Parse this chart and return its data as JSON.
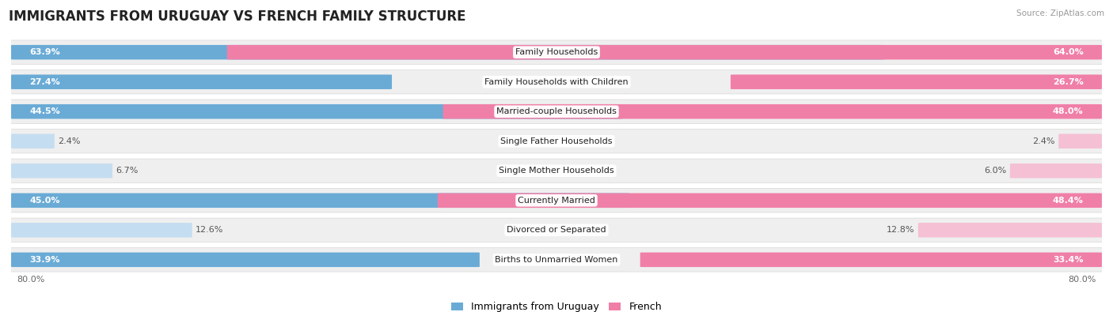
{
  "title": "IMMIGRANTS FROM URUGUAY VS FRENCH FAMILY STRUCTURE",
  "source": "Source: ZipAtlas.com",
  "categories": [
    "Family Households",
    "Family Households with Children",
    "Married-couple Households",
    "Single Father Households",
    "Single Mother Households",
    "Currently Married",
    "Divorced or Separated",
    "Births to Unmarried Women"
  ],
  "uruguay_values": [
    63.9,
    27.4,
    44.5,
    2.4,
    6.7,
    45.0,
    12.6,
    33.9
  ],
  "french_values": [
    64.0,
    26.7,
    48.0,
    2.4,
    6.0,
    48.4,
    12.8,
    33.4
  ],
  "max_val": 80.0,
  "uruguay_color_strong": "#6AABD6",
  "uruguay_color_light": "#C5DDF0",
  "french_color_strong": "#F07FA8",
  "french_color_light": "#F5C0D4",
  "row_bg_color": "#EFEFEF",
  "row_border_color": "#DDDDDD",
  "label_font_size": 8.0,
  "value_font_size": 8.0,
  "title_font_size": 12,
  "legend_font_size": 9,
  "axis_label_font_size": 8,
  "background_color": "#FFFFFF",
  "strong_threshold": 20.0
}
